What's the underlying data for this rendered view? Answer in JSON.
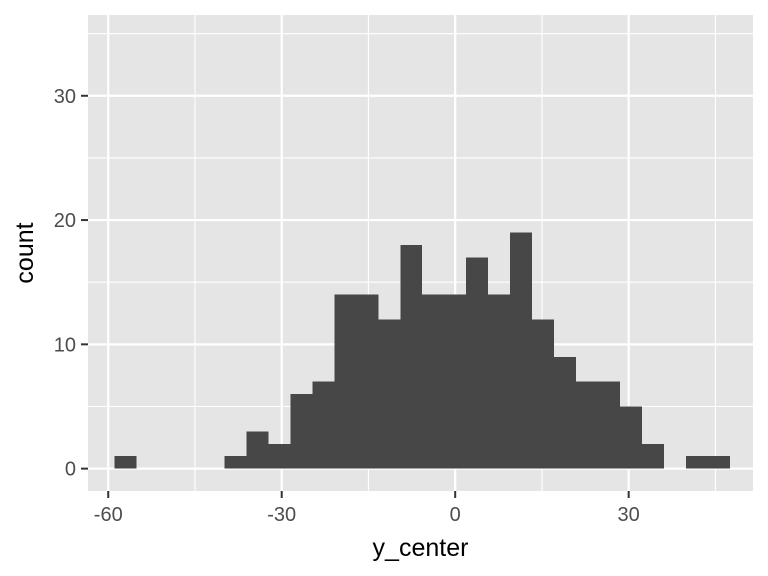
{
  "chart_data": {
    "type": "bar",
    "xlabel": "y_center",
    "ylabel": "count",
    "xlim": [
      -63.5,
      51.5
    ],
    "ylim": [
      -1.8,
      36.5
    ],
    "x_ticks": [
      -60,
      -30,
      0,
      30
    ],
    "y_ticks": [
      0,
      10,
      20,
      30
    ],
    "bin_width": 3.8,
    "bins": [
      {
        "start": -58.9,
        "end": -55.1,
        "count": 1
      },
      {
        "start": -55.1,
        "end": -51.3,
        "count": 0
      },
      {
        "start": -51.3,
        "end": -47.5,
        "count": 0
      },
      {
        "start": -47.5,
        "end": -43.7,
        "count": 0
      },
      {
        "start": -43.7,
        "end": -39.9,
        "count": 0
      },
      {
        "start": -39.9,
        "end": -36.1,
        "count": 1
      },
      {
        "start": -36.1,
        "end": -32.3,
        "count": 3
      },
      {
        "start": -32.3,
        "end": -28.5,
        "count": 2
      },
      {
        "start": -28.5,
        "end": -24.7,
        "count": 6
      },
      {
        "start": -24.7,
        "end": -20.9,
        "count": 7
      },
      {
        "start": -20.9,
        "end": -17.1,
        "count": 14
      },
      {
        "start": -17.1,
        "end": -13.3,
        "count": 14
      },
      {
        "start": -13.3,
        "end": -9.5,
        "count": 12
      },
      {
        "start": -9.5,
        "end": -5.7,
        "count": 18
      },
      {
        "start": -5.7,
        "end": -1.9,
        "count": 14
      },
      {
        "start": -1.9,
        "end": 1.9,
        "count": 14
      },
      {
        "start": 1.9,
        "end": 5.7,
        "count": 17
      },
      {
        "start": 5.7,
        "end": 9.5,
        "count": 14
      },
      {
        "start": 9.5,
        "end": 13.3,
        "count": 19
      },
      {
        "start": 13.3,
        "end": 17.1,
        "count": 12
      },
      {
        "start": 17.1,
        "end": 20.9,
        "count": 9
      },
      {
        "start": 20.9,
        "end": 24.7,
        "count": 7
      },
      {
        "start": 24.7,
        "end": 28.5,
        "count": 7
      },
      {
        "start": 28.5,
        "end": 32.3,
        "count": 5
      },
      {
        "start": 32.3,
        "end": 36.1,
        "count": 2
      },
      {
        "start": 36.1,
        "end": 39.9,
        "count": 0
      },
      {
        "start": 39.9,
        "end": 43.7,
        "count": 1
      },
      {
        "start": 43.7,
        "end": 47.5,
        "count": 1
      }
    ],
    "grid": true,
    "legend": "none"
  },
  "colors": {
    "panel_background": "#e5e5e5",
    "grid_line": "#ffffff",
    "bar_fill": "#474747",
    "tick_mark": "#333333",
    "tick_label": "#4d4d4d",
    "axis_title": "#000000"
  }
}
